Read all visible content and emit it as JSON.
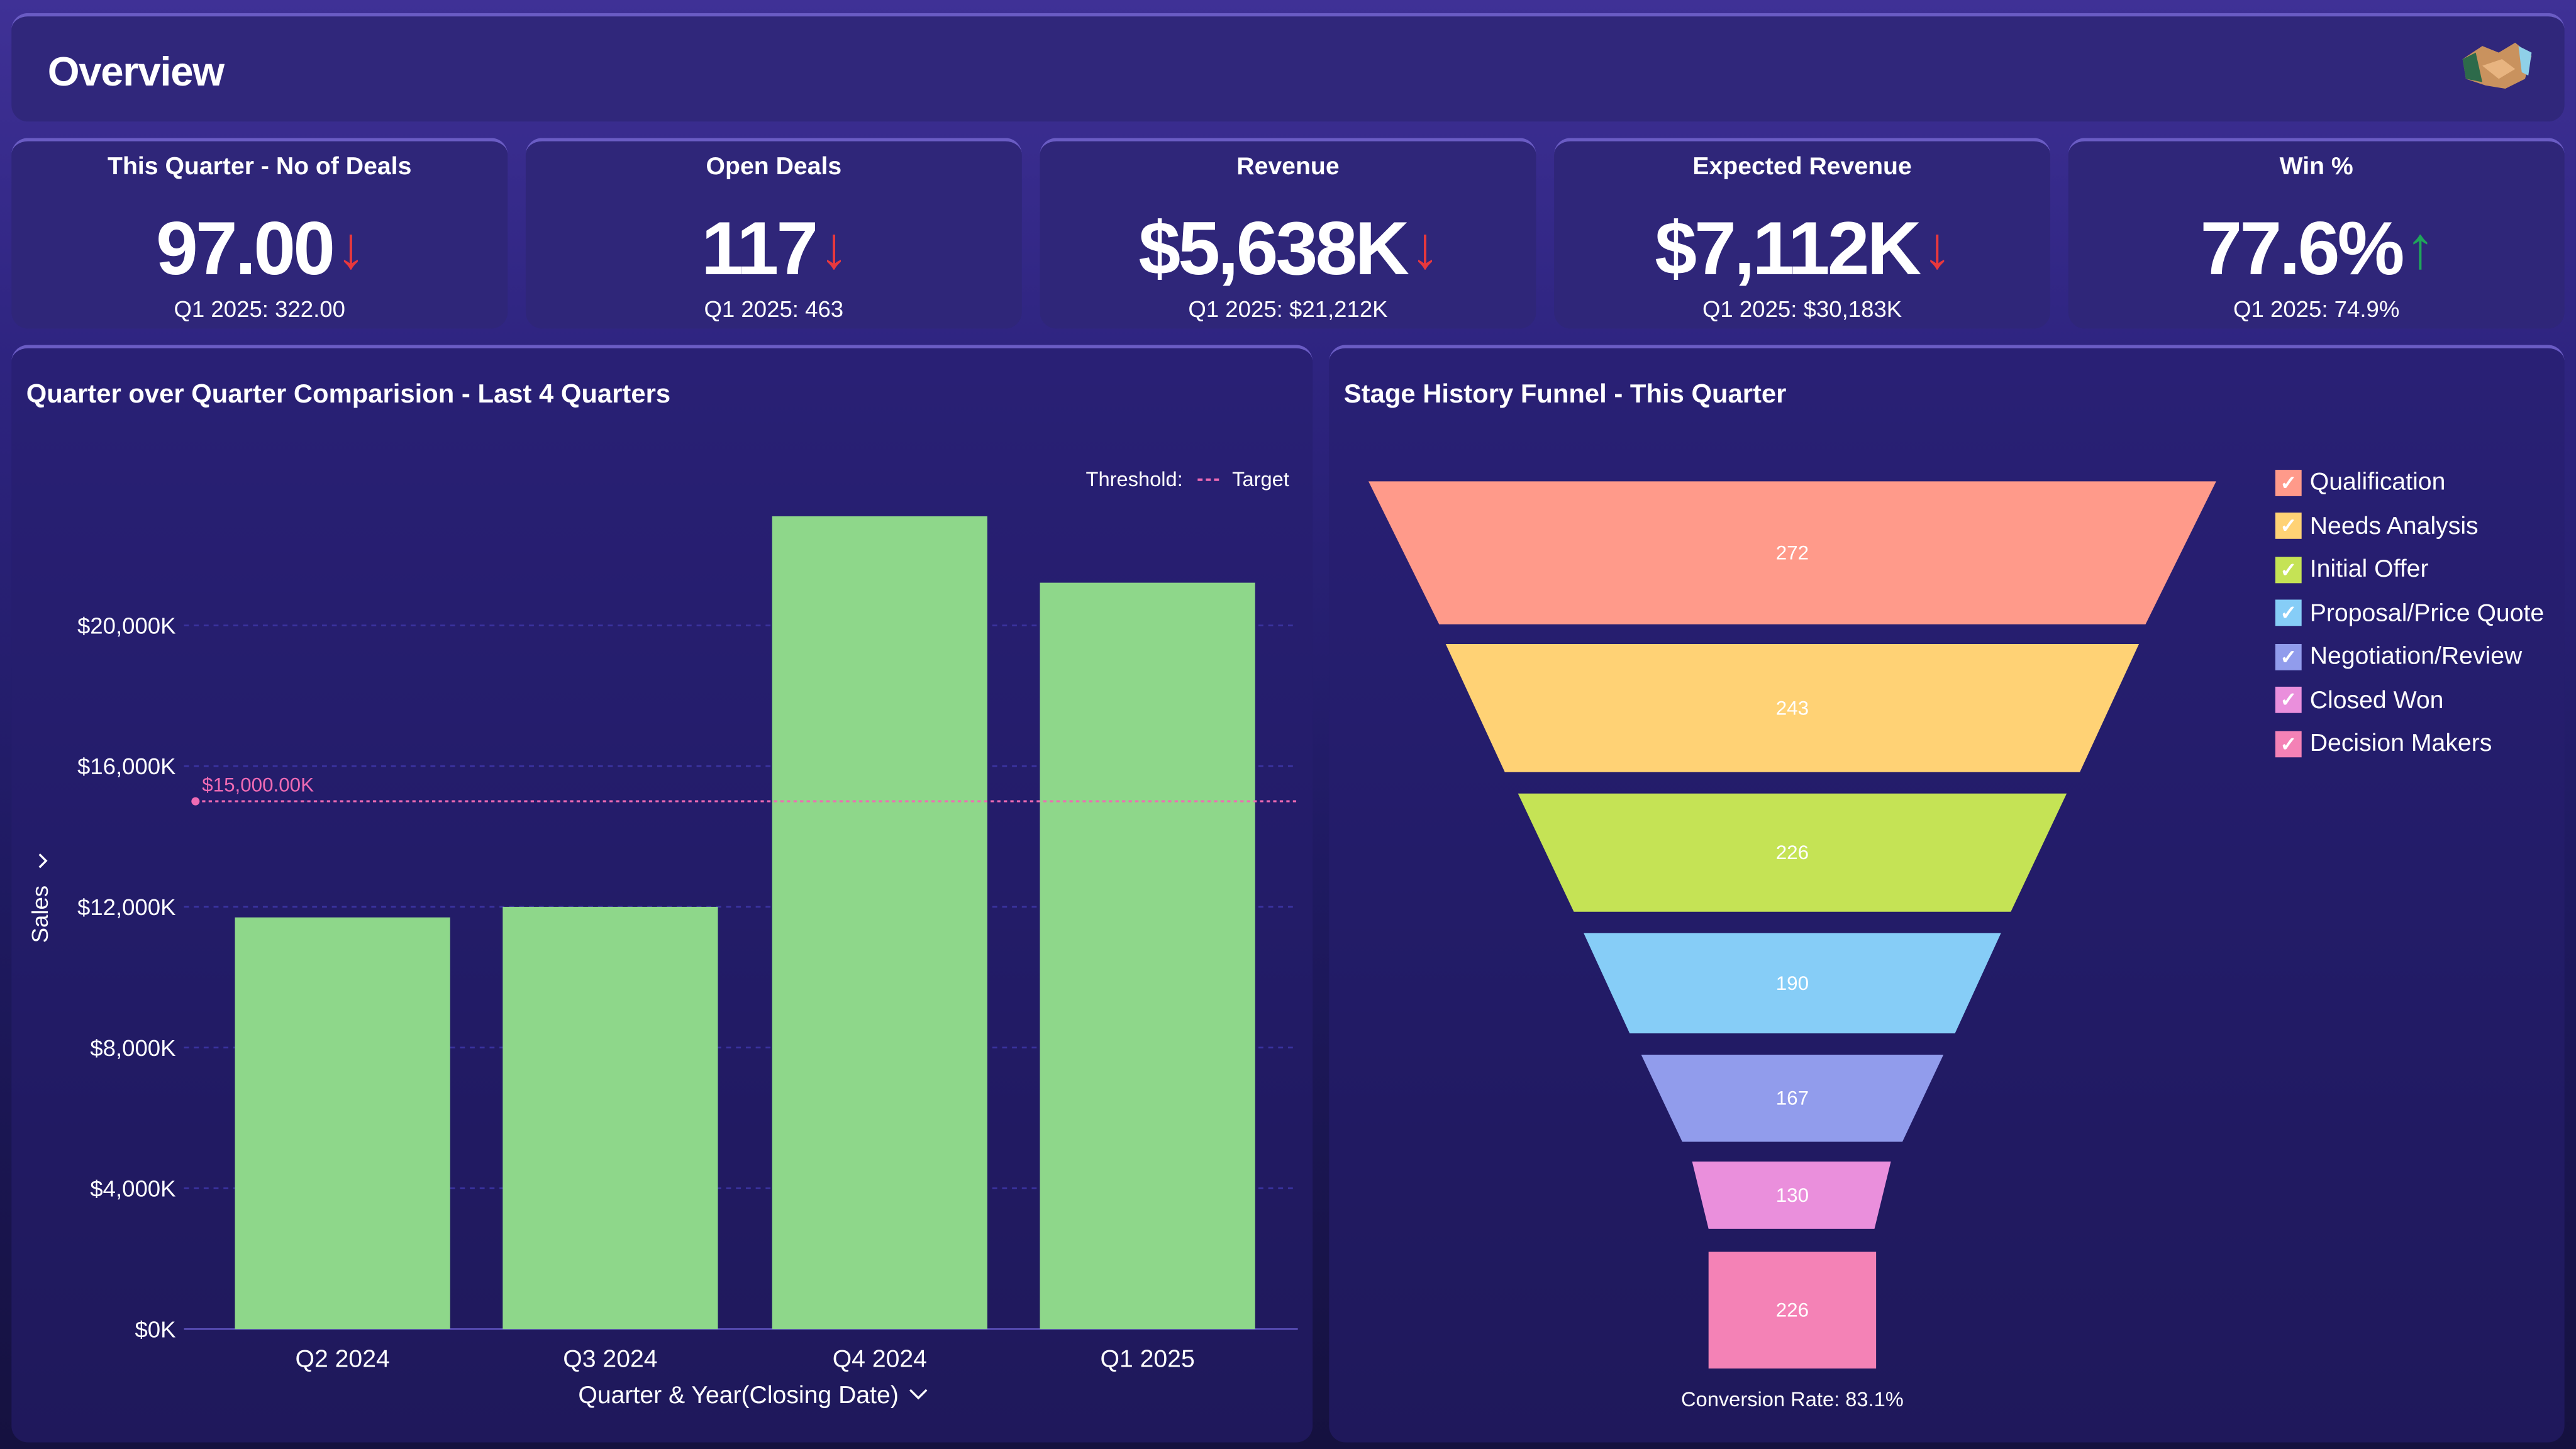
{
  "header": {
    "title": "Overview",
    "logo_icon": "handshake-icon"
  },
  "kpis": [
    {
      "label": "This Quarter - No of Deals",
      "value": "97.00",
      "trend": "down",
      "comparison": "Q1 2025: 322.00"
    },
    {
      "label": "Open Deals",
      "value": "117",
      "trend": "down",
      "comparison": "Q1 2025: 463"
    },
    {
      "label": "Revenue",
      "value": "$5,638K",
      "trend": "down",
      "comparison": "Q1 2025: $21,212K"
    },
    {
      "label": "Expected Revenue",
      "value": "$7,112K",
      "trend": "down",
      "comparison": "Q1 2025: $30,183K"
    },
    {
      "label": "Win %",
      "value": "77.6%",
      "trend": "up",
      "comparison": "Q1 2025: 74.9%"
    }
  ],
  "colors": {
    "down": "#e8383d",
    "up": "#1fa55a",
    "bar": "#8ed78a",
    "threshold": "#f06bb4"
  },
  "chart_data": [
    {
      "type": "bar",
      "title": "Quarter over Quarter Comparision - Last 4 Quarters",
      "categories": [
        "Q2 2024",
        "Q3 2024",
        "Q4 2024",
        "Q1 2025"
      ],
      "values": [
        11700,
        12000,
        23100,
        21212
      ],
      "xlabel": "Quarter & Year(Closing Date)",
      "ylabel": "Sales",
      "ylim": [
        0,
        24000
      ],
      "yticks": [
        0,
        4000,
        8000,
        12000,
        16000,
        20000
      ],
      "ytick_labels": [
        "$0K",
        "$4,000K",
        "$8,000K",
        "$12,000K",
        "$16,000K",
        "$20,000K"
      ],
      "grid": true,
      "threshold": {
        "legend_prefix": "Threshold:",
        "name": "Target",
        "value": 15000,
        "label": "$15,000.00K"
      }
    },
    {
      "type": "funnel",
      "title": "Stage History Funnel - This Quarter",
      "stages": [
        {
          "name": "Qualification",
          "value": 272,
          "color": "#ff9a8a"
        },
        {
          "name": "Needs Analysis",
          "value": 243,
          "color": "#ffd275"
        },
        {
          "name": "Initial Offer",
          "value": 226,
          "color": "#c5e355"
        },
        {
          "name": "Proposal/Price Quote",
          "value": 190,
          "color": "#86cdf7"
        },
        {
          "name": "Negotiation/Review",
          "value": 167,
          "color": "#919cec"
        },
        {
          "name": "Closed Won",
          "value": 130,
          "color": "#ea8fdc"
        },
        {
          "name": "Decision Makers",
          "value": 226,
          "color": "#f482b6"
        }
      ],
      "footer": "Conversion Rate: 83.1%",
      "legend": "right"
    }
  ]
}
